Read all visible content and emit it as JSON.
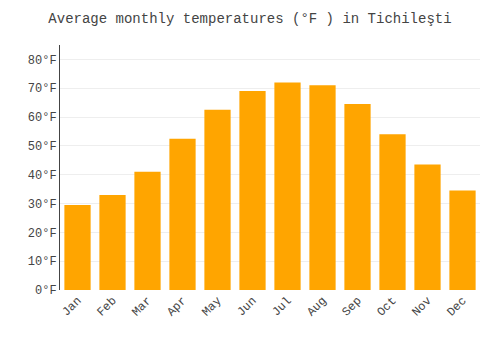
{
  "chart_data": {
    "type": "bar",
    "title": "Average monthly temperatures (°F ) in Tichileşti",
    "categories": [
      "Jan",
      "Feb",
      "Mar",
      "Apr",
      "May",
      "Jun",
      "Jul",
      "Aug",
      "Sep",
      "Oct",
      "Nov",
      "Dec"
    ],
    "values": [
      29.5,
      33.0,
      41.0,
      52.5,
      62.5,
      69.0,
      72.0,
      71.0,
      64.5,
      54.0,
      43.5,
      34.5
    ],
    "color": "#FFA500",
    "ylim": [
      0,
      85
    ],
    "yticks": [
      {
        "value": 0,
        "label": "0°F"
      },
      {
        "value": 10,
        "label": "10°F"
      },
      {
        "value": 20,
        "label": "20°F"
      },
      {
        "value": 30,
        "label": "30°F"
      },
      {
        "value": 40,
        "label": "40°F"
      },
      {
        "value": 50,
        "label": "50°F"
      },
      {
        "value": 60,
        "label": "60°F"
      },
      {
        "value": 70,
        "label": "70°F"
      },
      {
        "value": 80,
        "label": "80°F"
      }
    ],
    "grid": true
  }
}
